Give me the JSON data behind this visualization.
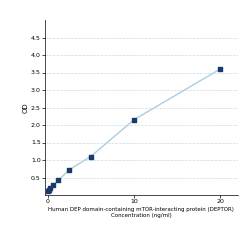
{
  "x_data": [
    0.078,
    0.156,
    0.313,
    0.625,
    1.25,
    2.5,
    5,
    10,
    20
  ],
  "y_data": [
    0.105,
    0.13,
    0.19,
    0.28,
    0.42,
    0.72,
    1.1,
    2.15,
    3.6
  ],
  "line_color": "#aecde0",
  "marker_color": "#1a3a6b",
  "marker_size": 3,
  "marker_style": "s",
  "xlabel_line1": "Human DEP domain-containing mTOR-interacting protein (DEPTOR)",
  "xlabel_line2": "Concentration (ng/ml)",
  "ylabel": "OD",
  "xlim": [
    -0.3,
    22
  ],
  "ylim": [
    0,
    5.0
  ],
  "yticks": [
    0.5,
    1,
    1.5,
    2,
    2.5,
    3,
    3.5,
    4,
    4.5
  ],
  "xticks": [
    0,
    10,
    20
  ],
  "grid_color": "#c8dce8",
  "background_color": "#ffffff",
  "label_fontsize": 4.0,
  "tick_fontsize": 4.5,
  "ylabel_fontsize": 5.0
}
